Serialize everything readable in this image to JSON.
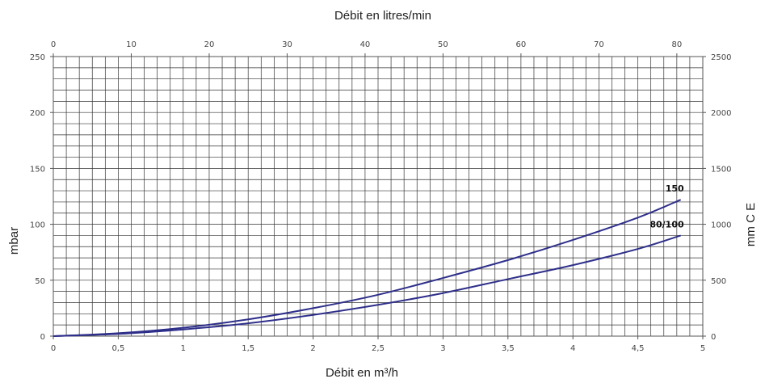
{
  "chart_data": {
    "type": "line",
    "xlabel_top": "Débit en litres/min",
    "xlabel_bottom": "Débit en m³/h",
    "ylabel_left": "mbar",
    "ylabel_right": "mm C E",
    "x_bottom_range": [
      0,
      5
    ],
    "x_top_range": [
      0,
      83.33
    ],
    "y_left_range": [
      0,
      250
    ],
    "y_right_range": [
      0,
      2500
    ],
    "x_bottom_ticks": [
      "0",
      "0,5",
      "1",
      "1,5",
      "2",
      "2,5",
      "3",
      "3,5",
      "4",
      "4,5",
      "5"
    ],
    "x_top_ticks": [
      "0",
      "10",
      "20",
      "30",
      "40",
      "50",
      "60",
      "70",
      "80"
    ],
    "y_left_ticks": [
      "0",
      "50",
      "100",
      "150",
      "200",
      "250"
    ],
    "y_right_ticks": [
      "0",
      "500",
      "1000",
      "1500",
      "2000",
      "2500"
    ],
    "grid": true,
    "series_color": "#2e2f8a",
    "series": [
      {
        "name": "150",
        "x": [
          0,
          0.5,
          1,
          1.5,
          2,
          2.5,
          3,
          3.5,
          4,
          4.5,
          4.83
        ],
        "y": [
          0,
          2.6,
          7.5,
          15,
          25,
          37,
          52,
          68,
          86,
          106,
          122
        ]
      },
      {
        "name": "80/100",
        "x": [
          0,
          0.5,
          1,
          1.5,
          2,
          2.5,
          3,
          3.5,
          4,
          4.5,
          4.83
        ],
        "y": [
          0,
          2,
          6,
          11.5,
          19,
          28,
          38.5,
          51,
          63.5,
          78,
          90
        ]
      }
    ]
  }
}
